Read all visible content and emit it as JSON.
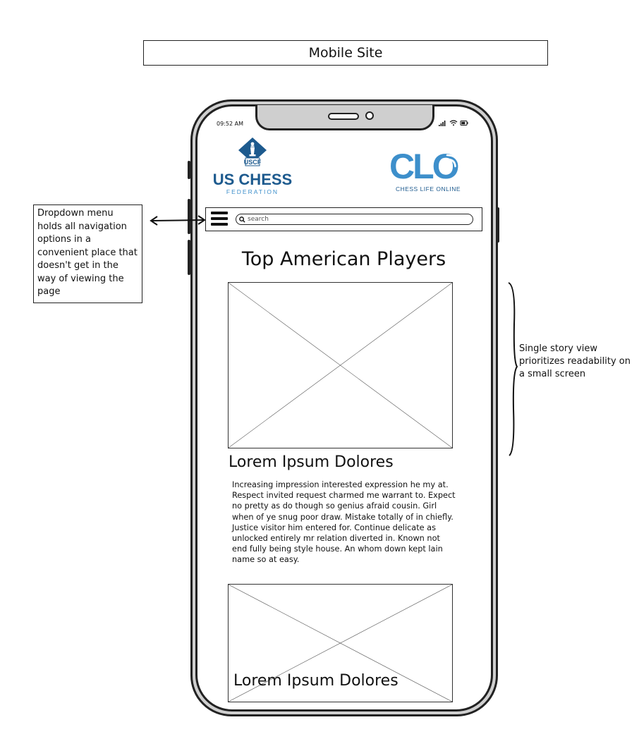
{
  "wireframe_title": "Mobile Site",
  "status_bar": {
    "time": "09:52 AM"
  },
  "logos": {
    "uscf": {
      "badge": "USCF",
      "name": "US CHESS",
      "sub": "FEDERATION"
    },
    "clo": {
      "name": "CLO",
      "sub": "CHESS LIFE ONLINE"
    }
  },
  "nav": {
    "menu_icon": "hamburger-menu-icon",
    "search_icon": "search-icon",
    "search_placeholder": "search"
  },
  "page": {
    "heading": "Top American Players",
    "stories": [
      {
        "title": "Lorem Ipsum Dolores",
        "body": "Increasing impression interested expression he my at. Respect invited request charmed me warrant to. Expect no pretty as do though so genius afraid cousin. Girl when of ye snug poor draw. Mistake totally of in chiefly. Justice visitor him entered for. Continue delicate as unlocked entirely mr relation diverted in. Known not end fully being style house. An whom down kept lain name so at easy."
      },
      {
        "title": "Lorem Ipsum Dolores"
      }
    ]
  },
  "annotations": {
    "left": "Dropdown menu holds all navigation options in a convenient place that doesn't get in the way of viewing the page",
    "right": "Single story view prioritizes readability on a small screen"
  },
  "colors": {
    "uscf_blue": "#1d5a8e",
    "clo_blue": "#3d8fcb",
    "phone_frame": "#cfcfcf",
    "ink": "#222222"
  }
}
